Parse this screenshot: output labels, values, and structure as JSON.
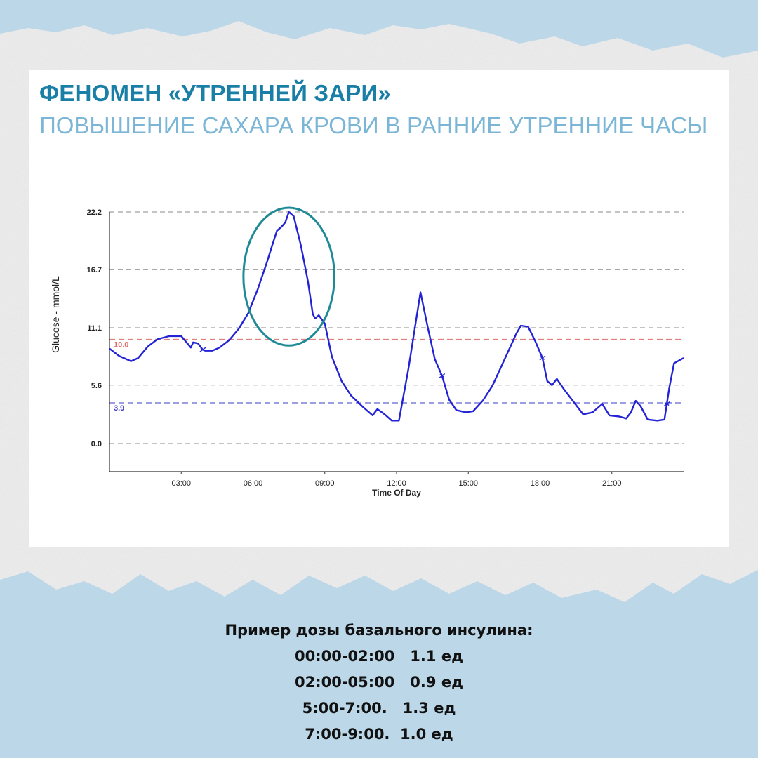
{
  "colors": {
    "background": "#bcd7e8",
    "title": "#1a7fa6",
    "subtitle": "#7cb6d6",
    "glucose_line": "#2323d6",
    "high_threshold": "#e06b6b",
    "low_threshold": "#3b3bc4",
    "annotation_ellipse": "#1f8a96"
  },
  "header": {
    "title": "ФЕНОМЕН «УТРЕННЕЙ ЗАРИ»",
    "subtitle": "ПОВЫШЕНИЕ САХАРА КРОВИ В РАННИЕ УТРЕННИЕ ЧАСЫ"
  },
  "chart_data": {
    "type": "line",
    "xlabel": "Time Of Day",
    "ylabel": "Glucose - mmol/L",
    "xlim": [
      0,
      24
    ],
    "ylim": [
      -2.3,
      22.2
    ],
    "x_ticks": [
      3,
      6,
      9,
      12,
      15,
      18,
      21
    ],
    "x_tick_labels": [
      "03:00",
      "06:00",
      "09:00",
      "12:00",
      "15:00",
      "18:00",
      "21:00"
    ],
    "y_ticks": [
      0.0,
      5.6,
      11.1,
      16.7,
      22.2
    ],
    "y_tick_labels": [
      "0.0",
      "5.6",
      "11.1",
      "16.7",
      "22.2"
    ],
    "grid": "horizontal-dashed",
    "thresholds": [
      {
        "label": "10.0",
        "value": 10.0,
        "color": "#e06b6b"
      },
      {
        "label": "3.9",
        "value": 3.9,
        "color": "#3b3bc4"
      }
    ],
    "series": [
      {
        "color": "#2323d6",
        "x": [
          0,
          0.4,
          0.9,
          1.2,
          1.6,
          2.0,
          2.5,
          3.0,
          3.4,
          3.5,
          3.7,
          3.9,
          4.0,
          4.3,
          4.6,
          5.0,
          5.4,
          5.8,
          6.2,
          6.6,
          6.8,
          7.0,
          7.2,
          7.35,
          7.5,
          7.7,
          8.0,
          8.3,
          8.5,
          8.6,
          8.75,
          9.0,
          9.3,
          9.7,
          10.1,
          10.6,
          11.0,
          11.2,
          11.5,
          11.8,
          12.1,
          12.5,
          13.0,
          13.3,
          13.6,
          13.9,
          14.2,
          14.5,
          14.9,
          15.2,
          15.6,
          16.0,
          16.4,
          16.8,
          17.0,
          17.2,
          17.5,
          17.8,
          18.1,
          18.3,
          18.5,
          18.7,
          19.0,
          19.4,
          19.8,
          20.2,
          20.6,
          20.9,
          21.3,
          21.6,
          21.8,
          22.0,
          22.2,
          22.5,
          22.9,
          23.2,
          23.4,
          23.6,
          24.0
        ],
        "values": [
          9.1,
          8.4,
          7.9,
          8.2,
          9.3,
          10.0,
          10.3,
          10.3,
          9.2,
          9.7,
          9.6,
          9.0,
          8.9,
          8.9,
          9.2,
          9.9,
          11.0,
          12.5,
          14.8,
          17.5,
          19.0,
          20.4,
          20.8,
          21.2,
          22.2,
          21.8,
          19.0,
          15.5,
          12.4,
          12.0,
          12.3,
          11.5,
          8.3,
          6.0,
          4.6,
          3.5,
          2.7,
          3.3,
          2.8,
          2.2,
          2.2,
          7.2,
          14.5,
          11.2,
          8.1,
          6.5,
          4.2,
          3.2,
          3.0,
          3.1,
          4.1,
          5.5,
          7.5,
          9.5,
          10.5,
          11.3,
          11.2,
          9.8,
          8.2,
          6.0,
          5.6,
          6.2,
          5.2,
          4.0,
          2.8,
          3.0,
          3.8,
          2.7,
          2.6,
          2.4,
          3.0,
          4.1,
          3.6,
          2.3,
          2.2,
          2.3,
          5.3,
          7.7,
          8.2
        ]
      }
    ],
    "markers_x": [
      3.9,
      13.9,
      18.1,
      23.3
    ],
    "highlight_ellipse": {
      "x_center": 7.5,
      "y_center": 16.0,
      "x_radius": 1.9,
      "y_radius": 6.6
    }
  },
  "dose_info": {
    "heading": "Пример дозы базального инсулина:",
    "items": [
      "00:00-02:00   1.1 ед",
      "02:00-05:00   0.9 ед",
      "5:00-7:00.   1.3 ед",
      "7:00-9:00.  1.0 ед"
    ]
  }
}
